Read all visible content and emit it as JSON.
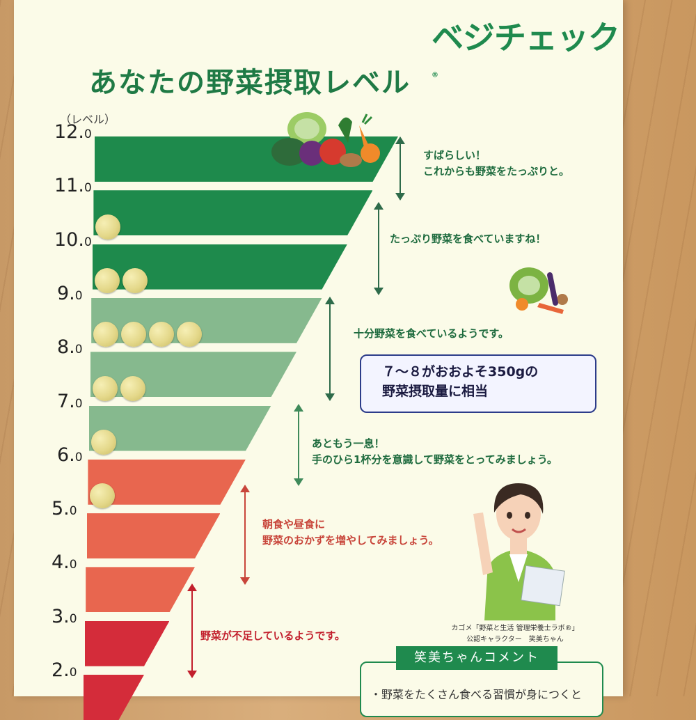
{
  "brand": "ベジチェック",
  "brand_mark": "®",
  "title": "あなたの野菜摂取レベル",
  "level_unit": "（レベル）",
  "ticks": [
    {
      "main": "12.",
      "dec": "0"
    },
    {
      "main": "11.",
      "dec": "0"
    },
    {
      "main": "10.",
      "dec": "0"
    },
    {
      "main": "9.",
      "dec": "0"
    },
    {
      "main": "8.",
      "dec": "0"
    },
    {
      "main": "7.",
      "dec": "0"
    },
    {
      "main": "6.",
      "dec": "0"
    },
    {
      "main": "5.",
      "dec": "0"
    },
    {
      "main": "4.",
      "dec": "0"
    },
    {
      "main": "3.",
      "dec": "0"
    },
    {
      "main": "2.",
      "dec": "0"
    }
  ],
  "bars": [
    {
      "level": "12-11",
      "color": "#1e8a4c",
      "coins": 0
    },
    {
      "level": "11-10",
      "color": "#1e8a4c",
      "coins": 1
    },
    {
      "level": "10-9",
      "color": "#1e8a4c",
      "coins": 2
    },
    {
      "level": "9-8",
      "color": "#86b98e",
      "coins": 4
    },
    {
      "level": "8-7",
      "color": "#86b98e",
      "coins": 2
    },
    {
      "level": "7-6",
      "color": "#86b98e",
      "coins": 1
    },
    {
      "level": "6-5",
      "color": "#e8664f",
      "coins": 1
    },
    {
      "level": "5-4",
      "color": "#e8664f",
      "coins": 0
    },
    {
      "level": "4-3",
      "color": "#e8664f",
      "coins": 0
    },
    {
      "level": "3-2",
      "color": "#d42c3a",
      "coins": 0
    },
    {
      "level": "2-1",
      "color": "#d42c3a",
      "coins": 0
    }
  ],
  "messages": {
    "m1_line1": "すばらしい！",
    "m1_line2": "これからも野菜をたっぷりと。",
    "m2": "たっぷり野菜を食べていますね！",
    "m3": "十分野菜を食べているようです。",
    "m4_line1": "あともう一息！",
    "m4_line2": "手のひら1杯分を意識して野菜をとってみましょう。",
    "m5_line1": "朝食や昼食に",
    "m5_line2": "野菜のおかずを増やしてみましょう。",
    "m6": "野菜が不足しているようです。"
  },
  "note": {
    "line1": "７～８がおおよそ350gの",
    "line2": "野菜摂取量に相当"
  },
  "caption": {
    "line1": "カゴメ「野菜と生活 管理栄養士ラボ®」",
    "line2": "公認キャラクター　笑美ちゃん"
  },
  "comment_title": "笑美ちゃんコメント",
  "comment_line": "・野菜をたくさん食べる習慣が身につくと",
  "colors": {
    "dark_green": "#1e8a4c",
    "light_green": "#86b98e",
    "coral": "#e8664f",
    "red": "#d42c3a"
  }
}
